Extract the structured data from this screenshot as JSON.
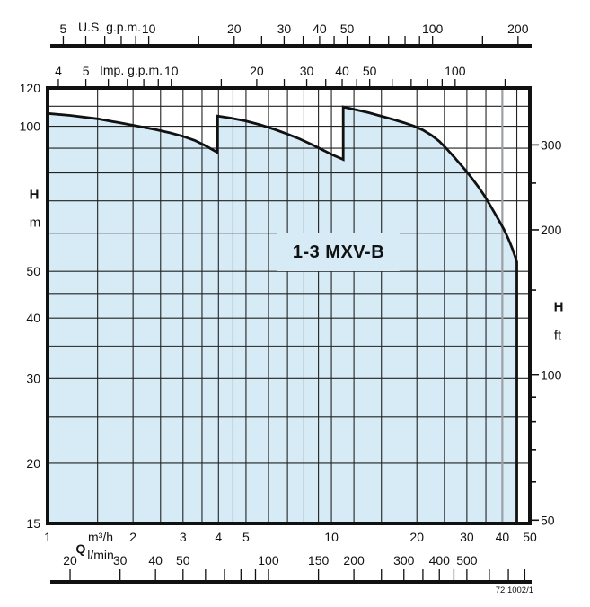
{
  "figure": {
    "title": "1-3 MXV-B",
    "drawing_number": "72.1002/1"
  },
  "labels": {
    "us_unit": "U.S. g.p.m.",
    "imp_unit": "Imp. g.p.m.",
    "q": "Q",
    "m3h": "m³/h",
    "lmin": "l/min",
    "h_left": "H",
    "m_left": "m",
    "h_right": "H",
    "ft_right": "ft"
  },
  "colors": {
    "fill": "#d7ebf7",
    "line": "#111111",
    "grid": "#222222",
    "gray_grid": "#9aa0a4",
    "background": "#ffffff"
  },
  "chart_data": {
    "type": "area",
    "title": "1-3 MXV-B",
    "x_scale": "log",
    "y_scale": "log",
    "x_range_m3h": [
      1,
      50
    ],
    "y_range_m": [
      15,
      120
    ],
    "axes": {
      "top_us_gpm": {
        "unit": "U.S. g.p.m.",
        "gpm_per_m3h": 4.4029,
        "ticks": [
          5,
          6,
          7,
          8,
          9,
          10,
          15,
          20,
          25,
          30,
          35,
          40,
          45,
          50,
          60,
          70,
          80,
          90,
          100,
          150,
          200
        ],
        "labeled": [
          5,
          10,
          20,
          30,
          40,
          50,
          100,
          200
        ]
      },
      "top_imp_gpm": {
        "unit": "Imp. g.p.m.",
        "gpm_per_m3h": 3.6662,
        "ticks": [
          4,
          5,
          6,
          7,
          8,
          9,
          10,
          15,
          20,
          25,
          30,
          35,
          40,
          45,
          50,
          60,
          70,
          80,
          90,
          100,
          150
        ],
        "labeled": [
          4,
          5,
          10,
          20,
          30,
          40,
          50,
          100
        ]
      },
      "bottom_m3h": {
        "unit": "m³/h",
        "labeled": [
          1,
          2,
          3,
          4,
          5,
          10,
          20,
          30,
          40,
          50
        ]
      },
      "bottom_lmin": {
        "unit": "l/min",
        "lmin_per_m3h": 16.667,
        "ticks": [
          20,
          30,
          40,
          50,
          60,
          70,
          80,
          90,
          100,
          150,
          200,
          250,
          300,
          350,
          400,
          450,
          500,
          600,
          700,
          800
        ],
        "labeled": [
          20,
          30,
          40,
          50,
          100,
          150,
          200,
          300,
          400,
          500
        ]
      },
      "left_m": {
        "unit": "m",
        "labeled": [
          120,
          100,
          50,
          40,
          30,
          20,
          15
        ]
      },
      "right_ft": {
        "unit": "ft",
        "ft_per_m": 3.2808,
        "ticks": [
          300,
          250,
          200,
          150,
          100,
          90,
          80,
          70,
          60,
          50
        ],
        "labeled": [
          300,
          200,
          100,
          50
        ]
      }
    },
    "gridlines": {
      "horizontal_m": [
        110,
        100,
        90,
        80,
        70,
        60,
        50,
        45,
        40,
        35,
        30,
        25,
        20
      ],
      "vertical_m3h": [
        1.5,
        2,
        2.5,
        3,
        3.5,
        4,
        4.5,
        5,
        6,
        7,
        8,
        9,
        10,
        12,
        15,
        20,
        25,
        30,
        35,
        45
      ],
      "vertical_gray_m3h": [
        40
      ]
    },
    "envelope_q_h": [
      [
        1.0,
        106.3
      ],
      [
        1.2,
        105.3
      ],
      [
        1.5,
        103.6
      ],
      [
        1.8,
        101.6
      ],
      [
        2.1,
        99.9
      ],
      [
        2.4,
        98.4
      ],
      [
        2.7,
        96.9
      ],
      [
        3.0,
        95.3
      ],
      [
        3.3,
        93.4
      ],
      [
        3.6,
        91.1
      ],
      [
        3.95,
        88.3
      ],
      [
        3.95,
        105.0
      ],
      [
        4.4,
        104.0
      ],
      [
        5.0,
        102.5
      ],
      [
        5.6,
        100.7
      ],
      [
        6.3,
        98.5
      ],
      [
        7.0,
        96.3
      ],
      [
        7.7,
        94.2
      ],
      [
        8.5,
        91.7
      ],
      [
        9.3,
        89.3
      ],
      [
        10.1,
        87.2
      ],
      [
        11.0,
        85.3
      ],
      [
        11.0,
        109.6
      ],
      [
        12.0,
        108.4
      ],
      [
        13.5,
        106.7
      ],
      [
        15.0,
        104.9
      ],
      [
        16.5,
        103.3
      ],
      [
        18.0,
        101.7
      ],
      [
        19.5,
        100.1
      ],
      [
        21.0,
        98.2
      ],
      [
        22.5,
        95.8
      ],
      [
        24.0,
        93.0
      ],
      [
        25.5,
        89.7
      ],
      [
        27.0,
        86.4
      ],
      [
        28.5,
        83.3
      ],
      [
        30.0,
        80.4
      ],
      [
        31.5,
        77.5
      ],
      [
        33.0,
        74.7
      ],
      [
        34.5,
        71.9
      ],
      [
        36.0,
        69.0
      ],
      [
        37.5,
        66.2
      ],
      [
        39.0,
        63.6
      ],
      [
        40.5,
        61.1
      ],
      [
        42.0,
        58.4
      ],
      [
        43.5,
        55.5
      ],
      [
        44.6,
        53.2
      ],
      [
        45.0,
        52.3
      ],
      [
        45.0,
        15.0
      ]
    ]
  }
}
